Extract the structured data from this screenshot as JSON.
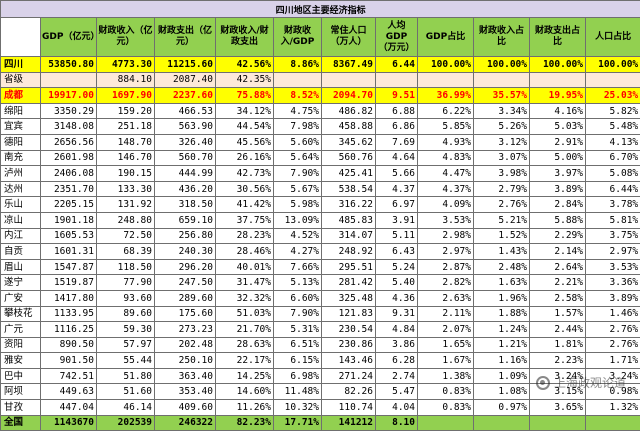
{
  "title": "四川地区主要经济指标",
  "headers": [
    "",
    "GDP（亿元）",
    "财政收入（亿元）",
    "财政支出（亿元）",
    "财政收入/财政支出",
    "财政收入/GDP",
    "常住人口（万人）",
    "人均GDP（万元）",
    "GDP占比",
    "财政收入占比",
    "财政支出占比",
    "人口占比"
  ],
  "rows": [
    {
      "type": "total",
      "cells": [
        "四川",
        "53850.80",
        "4773.30",
        "11215.60",
        "42.56%",
        "8.86%",
        "8367.49",
        "6.44",
        "100.00%",
        "100.00%",
        "100.00%",
        "100.00%"
      ]
    },
    {
      "type": "sub",
      "cells": [
        "省级",
        "",
        "884.10",
        "2087.40",
        "42.35%",
        "",
        "",
        "",
        "",
        "",
        "",
        ""
      ]
    },
    {
      "type": "highlight",
      "cells": [
        "成都",
        "19917.00",
        "1697.90",
        "2237.60",
        "75.88%",
        "8.52%",
        "2094.70",
        "9.51",
        "36.99%",
        "35.57%",
        "19.95%",
        "25.03%"
      ]
    },
    {
      "type": "normal",
      "cells": [
        "绵阳",
        "3350.29",
        "159.20",
        "466.53",
        "34.12%",
        "4.75%",
        "486.82",
        "6.88",
        "6.22%",
        "3.34%",
        "4.16%",
        "5.82%"
      ]
    },
    {
      "type": "normal",
      "cells": [
        "宜宾",
        "3148.08",
        "251.18",
        "563.90",
        "44.54%",
        "7.98%",
        "458.88",
        "6.86",
        "5.85%",
        "5.26%",
        "5.03%",
        "5.48%"
      ]
    },
    {
      "type": "normal",
      "cells": [
        "德阳",
        "2656.56",
        "148.70",
        "326.40",
        "45.56%",
        "5.60%",
        "345.62",
        "7.69",
        "4.93%",
        "3.12%",
        "2.91%",
        "4.13%"
      ]
    },
    {
      "type": "normal",
      "cells": [
        "南充",
        "2601.98",
        "146.70",
        "560.70",
        "26.16%",
        "5.64%",
        "560.76",
        "4.64",
        "4.83%",
        "3.07%",
        "5.00%",
        "6.70%"
      ]
    },
    {
      "type": "normal",
      "cells": [
        "泸州",
        "2406.08",
        "190.15",
        "444.99",
        "42.73%",
        "7.90%",
        "425.41",
        "5.66",
        "4.47%",
        "3.98%",
        "3.97%",
        "5.08%"
      ]
    },
    {
      "type": "normal",
      "cells": [
        "达州",
        "2351.70",
        "133.30",
        "436.20",
        "30.56%",
        "5.67%",
        "538.54",
        "4.37",
        "4.37%",
        "2.79%",
        "3.89%",
        "6.44%"
      ]
    },
    {
      "type": "normal",
      "cells": [
        "乐山",
        "2205.15",
        "131.92",
        "318.50",
        "41.42%",
        "5.98%",
        "316.22",
        "6.97",
        "4.09%",
        "2.76%",
        "2.84%",
        "3.78%"
      ]
    },
    {
      "type": "normal",
      "cells": [
        "凉山",
        "1901.18",
        "248.80",
        "659.10",
        "37.75%",
        "13.09%",
        "485.83",
        "3.91",
        "3.53%",
        "5.21%",
        "5.88%",
        "5.81%"
      ]
    },
    {
      "type": "normal",
      "cells": [
        "内江",
        "1605.53",
        "72.50",
        "256.80",
        "28.23%",
        "4.52%",
        "314.07",
        "5.11",
        "2.98%",
        "1.52%",
        "2.29%",
        "3.75%"
      ]
    },
    {
      "type": "normal",
      "cells": [
        "自贡",
        "1601.31",
        "68.39",
        "240.30",
        "28.46%",
        "4.27%",
        "248.92",
        "6.43",
        "2.97%",
        "1.43%",
        "2.14%",
        "2.97%"
      ]
    },
    {
      "type": "normal",
      "cells": [
        "眉山",
        "1547.87",
        "118.50",
        "296.20",
        "40.01%",
        "7.66%",
        "295.51",
        "5.24",
        "2.87%",
        "2.48%",
        "2.64%",
        "3.53%"
      ]
    },
    {
      "type": "normal",
      "cells": [
        "遂宁",
        "1519.87",
        "77.90",
        "247.50",
        "31.47%",
        "5.13%",
        "281.42",
        "5.40",
        "2.82%",
        "1.63%",
        "2.21%",
        "3.36%"
      ]
    },
    {
      "type": "normal",
      "cells": [
        "广安",
        "1417.80",
        "93.60",
        "289.60",
        "32.32%",
        "6.60%",
        "325.48",
        "4.36",
        "2.63%",
        "1.96%",
        "2.58%",
        "3.89%"
      ]
    },
    {
      "type": "normal",
      "cells": [
        "攀枝花",
        "1133.95",
        "89.60",
        "175.60",
        "51.03%",
        "7.90%",
        "121.83",
        "9.31",
        "2.11%",
        "1.88%",
        "1.57%",
        "1.46%"
      ]
    },
    {
      "type": "normal",
      "cells": [
        "广元",
        "1116.25",
        "59.30",
        "273.23",
        "21.70%",
        "5.31%",
        "230.54",
        "4.84",
        "2.07%",
        "1.24%",
        "2.44%",
        "2.76%"
      ]
    },
    {
      "type": "normal",
      "cells": [
        "资阳",
        "890.50",
        "57.97",
        "202.48",
        "28.63%",
        "6.51%",
        "230.86",
        "3.86",
        "1.65%",
        "1.21%",
        "1.81%",
        "2.76%"
      ]
    },
    {
      "type": "normal",
      "cells": [
        "雅安",
        "901.50",
        "55.44",
        "250.10",
        "22.17%",
        "6.15%",
        "143.46",
        "6.28",
        "1.67%",
        "1.16%",
        "2.23%",
        "1.71%"
      ]
    },
    {
      "type": "normal",
      "cells": [
        "巴中",
        "742.51",
        "51.80",
        "363.40",
        "14.25%",
        "6.98%",
        "271.24",
        "2.74",
        "1.38%",
        "1.09%",
        "3.24%",
        "3.24%"
      ]
    },
    {
      "type": "normal",
      "cells": [
        "阿坝",
        "449.63",
        "51.60",
        "353.40",
        "14.60%",
        "11.48%",
        "82.26",
        "5.47",
        "0.83%",
        "1.08%",
        "3.15%",
        "0.98%"
      ]
    },
    {
      "type": "normal",
      "cells": [
        "甘孜",
        "447.04",
        "46.14",
        "409.60",
        "11.26%",
        "10.32%",
        "110.74",
        "4.04",
        "0.83%",
        "0.97%",
        "3.65%",
        "1.32%"
      ]
    },
    {
      "type": "bottom",
      "cells": [
        "全国",
        "1143670",
        "202539",
        "246322",
        "82.23%",
        "17.71%",
        "141212",
        "8.10",
        "",
        "",
        "",
        ""
      ]
    }
  ],
  "watermark": {
    "text": "上海政观论道",
    "icon": "wechat-icon"
  }
}
